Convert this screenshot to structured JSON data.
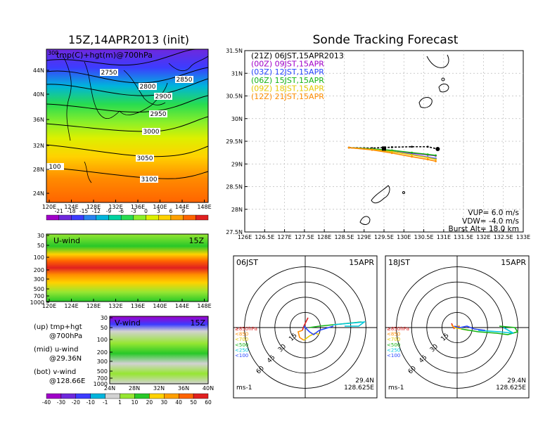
{
  "page": {
    "left_title": "15Z,14APR2013 (init)",
    "right_title": "Sonde Tracking Forecast"
  },
  "map_panel": {
    "label": "tmp(C)+hgt(m)@700hPa",
    "corner_value": "300",
    "lat_labels": [
      "44N",
      "40N",
      "36N",
      "32N",
      "28N",
      "24N"
    ],
    "lon_labels": [
      "120E",
      "124E",
      "128E",
      "132E",
      "136E",
      "140E",
      "144E",
      "148E"
    ],
    "contour_labels": [
      "2750",
      "2800",
      "2850",
      "2900",
      "2950",
      "3000",
      "3050",
      "3100",
      "100"
    ],
    "colorbar_labels": [
      "-21",
      "-18",
      "-15",
      "-12",
      "-9",
      "-6",
      "-3",
      "0",
      "3",
      "6",
      "9"
    ],
    "colorbar_colors": [
      "#a000c8",
      "#6e28dc",
      "#3c3cff",
      "#2882f0",
      "#00b4dc",
      "#00d2a0",
      "#28dc50",
      "#8cf028",
      "#dcf000",
      "#ffd200",
      "#ffa000",
      "#ff6400",
      "#e02020"
    ]
  },
  "uwind_panel": {
    "label": "U-wind",
    "time": "15Z",
    "pressure_labels": [
      "30",
      "50",
      "100",
      "200",
      "300",
      "500",
      "700",
      "1000"
    ],
    "lon_labels": [
      "120E",
      "124E",
      "128E",
      "132E",
      "136E",
      "140E",
      "144E",
      "148E"
    ]
  },
  "vwind_panel": {
    "label": "V-wind",
    "time": "15Z",
    "pressure_labels": [
      "30",
      "50",
      "100",
      "200",
      "300",
      "500",
      "700",
      "1000"
    ],
    "lat_labels": [
      "24N",
      "28N",
      "32N",
      "36N",
      "40N"
    ]
  },
  "side_notes": {
    "up": "(up) tmp+hgt",
    "up2": "@700hPa",
    "mid": "(mid) u-wind",
    "mid2": "@29.36N",
    "bot": "(bot) v-wind",
    "bot2": "@128.66E"
  },
  "wind_colorbar": {
    "labels": [
      "-40",
      "-30",
      "-20",
      "-10",
      "-1",
      "1",
      "10",
      "20",
      "30",
      "40",
      "50",
      "60"
    ],
    "colors": [
      "#a000c8",
      "#6e28dc",
      "#3c3cff",
      "#00b4dc",
      "#d2d2d2",
      "#96e632",
      "#28c828",
      "#ffd200",
      "#ffa000",
      "#ff6400",
      "#e02020"
    ]
  },
  "track_panel": {
    "legend": [
      {
        "label": "(21Z) 06JST,15APR2013",
        "color": "#000000"
      },
      {
        "label": "(00Z) 09JST,15APR",
        "color": "#a000c8"
      },
      {
        "label": "(03Z) 12JST,15APR",
        "color": "#2846ff"
      },
      {
        "label": "(06Z) 15JST,15APR",
        "color": "#14b414"
      },
      {
        "label": "(09Z) 18JST,15APR",
        "color": "#e6c800"
      },
      {
        "label": "(12Z) 21JST,15APR",
        "color": "#ff8c00"
      }
    ],
    "lat_labels": [
      "31.5N",
      "31N",
      "30.5N",
      "30N",
      "29.5N",
      "29N",
      "28.5N",
      "28N",
      "27.5N"
    ],
    "lon_labels": [
      "126E",
      "126.5E",
      "127E",
      "127.5E",
      "128E",
      "128.5E",
      "129E",
      "129.5E",
      "130E",
      "130.5E",
      "131E",
      "131.5E",
      "132E",
      "132.5E",
      "133E"
    ],
    "vup": "VUP= 6.0 m/s",
    "vdw": "VDW= -4.0 m/s",
    "burst": "Burst Alt= 18.0 km"
  },
  "hodo_left": {
    "time": "06JST",
    "date": "15APR",
    "rings": [
      "15",
      "30",
      "45",
      "60"
    ],
    "levels": [
      "≥850hPa",
      "<850",
      "<700",
      "<500",
      "<250",
      "<100"
    ],
    "level_colors": [
      "#e02020",
      "#ff8c00",
      "#e6c800",
      "#14b414",
      "#00c8dc",
      "#2846ff"
    ],
    "units": "ms-1",
    "lat": "29.4N",
    "lon": "128.625E"
  },
  "hodo_right": {
    "time": "18JST",
    "date": "15APR",
    "rings": [
      "15",
      "30",
      "45",
      "60"
    ],
    "levels": [
      "≥850hPa",
      "<850",
      "<700",
      "<500",
      "<250",
      "<100"
    ],
    "level_colors": [
      "#e02020",
      "#ff8c00",
      "#e6c800",
      "#14b414",
      "#00c8dc",
      "#2846ff"
    ],
    "units": "ms-1",
    "lat": "29.4N",
    "lon": "128.625E"
  },
  "chart_data": {
    "type": "line",
    "title": "Sonde Tracking Forecast",
    "xlabel": "",
    "ylabel": "",
    "xlim": [
      126,
      133
    ],
    "ylim": [
      27.5,
      31.5
    ],
    "series": [
      {
        "name": "(21Z) 06JST,15APR2013",
        "x": [
          128.62,
          129.2,
          129.7,
          130.2,
          130.6,
          130.85
        ],
        "y": [
          29.36,
          29.35,
          29.37,
          29.38,
          29.38,
          29.33
        ]
      },
      {
        "name": "(00Z) 09JST,15APR",
        "x": [
          128.62,
          129.2,
          129.7,
          130.2,
          130.6,
          130.8
        ],
        "y": [
          29.36,
          29.33,
          29.3,
          29.24,
          29.2,
          29.18
        ]
      },
      {
        "name": "(03Z) 12JST,15APR",
        "x": [
          128.62,
          129.2,
          129.7,
          130.2,
          130.6,
          130.8
        ],
        "y": [
          29.36,
          29.32,
          29.27,
          29.21,
          29.15,
          29.12
        ]
      },
      {
        "name": "(06Z) 15JST,15APR",
        "x": [
          128.62,
          129.2,
          129.7,
          130.2,
          130.6,
          130.8
        ],
        "y": [
          29.36,
          29.33,
          29.3,
          29.25,
          29.21,
          29.19
        ]
      },
      {
        "name": "(09Z) 18JST,15APR",
        "x": [
          128.62,
          129.2,
          129.7,
          130.2,
          130.6,
          130.8
        ],
        "y": [
          29.36,
          29.32,
          29.27,
          29.2,
          29.14,
          29.1
        ]
      },
      {
        "name": "(12Z) 21JST,15APR",
        "x": [
          128.62,
          129.2,
          129.7,
          130.2,
          130.6,
          130.8
        ],
        "y": [
          29.36,
          29.31,
          29.24,
          29.16,
          29.1,
          29.06
        ]
      }
    ]
  }
}
